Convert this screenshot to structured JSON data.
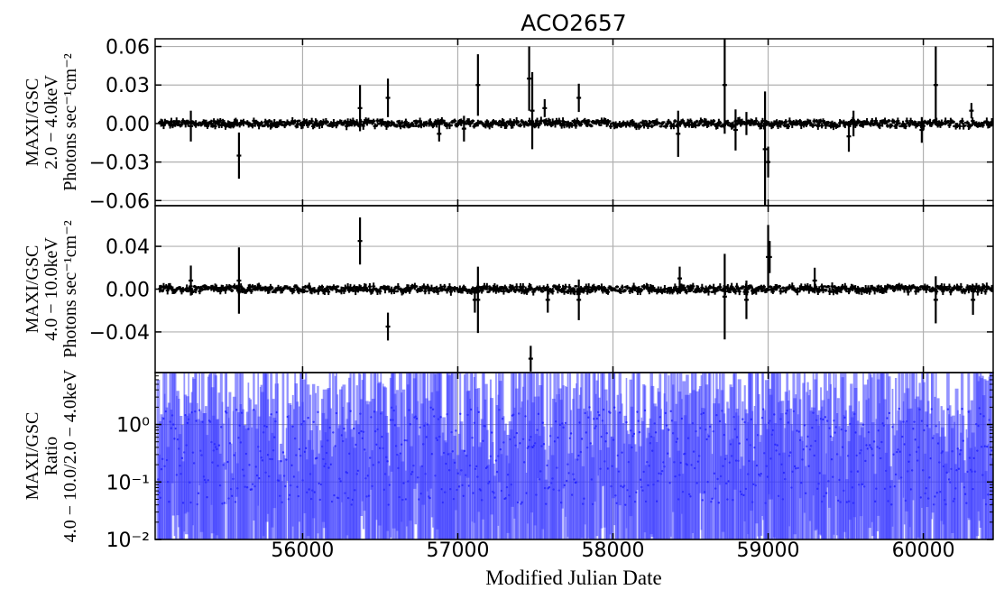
{
  "chart_data": {
    "type": "scatter",
    "title": "ACO2657",
    "xlabel": "Modified Julian Date",
    "xlim": [
      55050,
      60450
    ],
    "x_ticks": [
      56000,
      57000,
      58000,
      59000,
      60000
    ],
    "x_tick_labels": [
      "56000",
      "57000",
      "58000",
      "59000",
      "60000"
    ],
    "grid": true,
    "panels": [
      {
        "name": "soft",
        "ylabel_lines": [
          "MAXI/GSC",
          "2.0 − 4.0keV",
          "Photons sec⁻¹cm⁻²"
        ],
        "ylim": [
          -0.064,
          0.066
        ],
        "scale": "linear",
        "ticks": [
          -0.06,
          -0.03,
          0.0,
          0.03,
          0.06
        ],
        "tick_labels": [
          "−0.06",
          "−0.03",
          "0.00",
          "0.03",
          "0.06"
        ],
        "color": "#000000",
        "series": [
          {
            "x": [
              55280,
              55590,
              56370,
              56550,
              56880,
              57040,
              57130,
              57460,
              57480,
              57560,
              57780,
              58420,
              58720,
              58790,
              58860,
              58980,
              59000,
              59520,
              59550,
              59990,
              60080,
              60310
            ],
            "y": [
              -0.002,
              -0.025,
              0.012,
              0.02,
              -0.008,
              -0.004,
              0.03,
              0.035,
              0.01,
              0.012,
              0.02,
              -0.008,
              0.03,
              -0.005,
              0.0,
              -0.02,
              -0.03,
              -0.01,
              0.0,
              -0.005,
              0.03,
              0.01
            ],
            "err": [
              0.012,
              0.018,
              0.018,
              0.015,
              0.006,
              0.01,
              0.024,
              0.025,
              0.03,
              0.007,
              0.011,
              0.018,
              0.038,
              0.016,
              0.009,
              0.045,
              0.012,
              0.012,
              0.01,
              0.01,
              0.03,
              0.006
            ]
          }
        ]
      },
      {
        "name": "hard",
        "ylabel_lines": [
          "MAXI/GSC",
          "4.0 − 10.0keV",
          "Photons sec⁻¹cm⁻²"
        ],
        "ylim": [
          -0.078,
          0.078
        ],
        "scale": "linear",
        "ticks": [
          -0.04,
          0.0,
          0.04
        ],
        "tick_labels": [
          "−0.04",
          "0.00",
          "0.04"
        ],
        "color": "#000000",
        "series": [
          {
            "x": [
              55280,
              55590,
              56370,
              56550,
              57110,
              57130,
              57470,
              57580,
              57780,
              58430,
              58720,
              58860,
              59000,
              59010,
              59300,
              60080,
              60320
            ],
            "y": [
              0.008,
              0.008,
              0.045,
              -0.035,
              -0.01,
              -0.01,
              -0.065,
              -0.01,
              -0.01,
              0.01,
              -0.007,
              -0.01,
              0.03,
              0.03,
              0.008,
              -0.01,
              -0.01
            ],
            "err": [
              0.014,
              0.031,
              0.022,
              0.013,
              0.012,
              0.031,
              0.012,
              0.012,
              0.019,
              0.011,
              0.04,
              0.018,
              0.03,
              0.015,
              0.012,
              0.022,
              0.014
            ]
          }
        ]
      },
      {
        "name": "ratio",
        "ylabel_lines": [
          "MAXI/GSC",
          "Ratio",
          "4.0 − 10.0/2.0 − 4.0keV"
        ],
        "ylim": [
          0.01,
          8
        ],
        "scale": "log",
        "ticks": [
          0.01,
          0.1,
          1
        ],
        "tick_labels": [
          "10⁻²",
          "10⁻¹",
          "10⁰"
        ],
        "color": "#3b3bff"
      }
    ]
  }
}
